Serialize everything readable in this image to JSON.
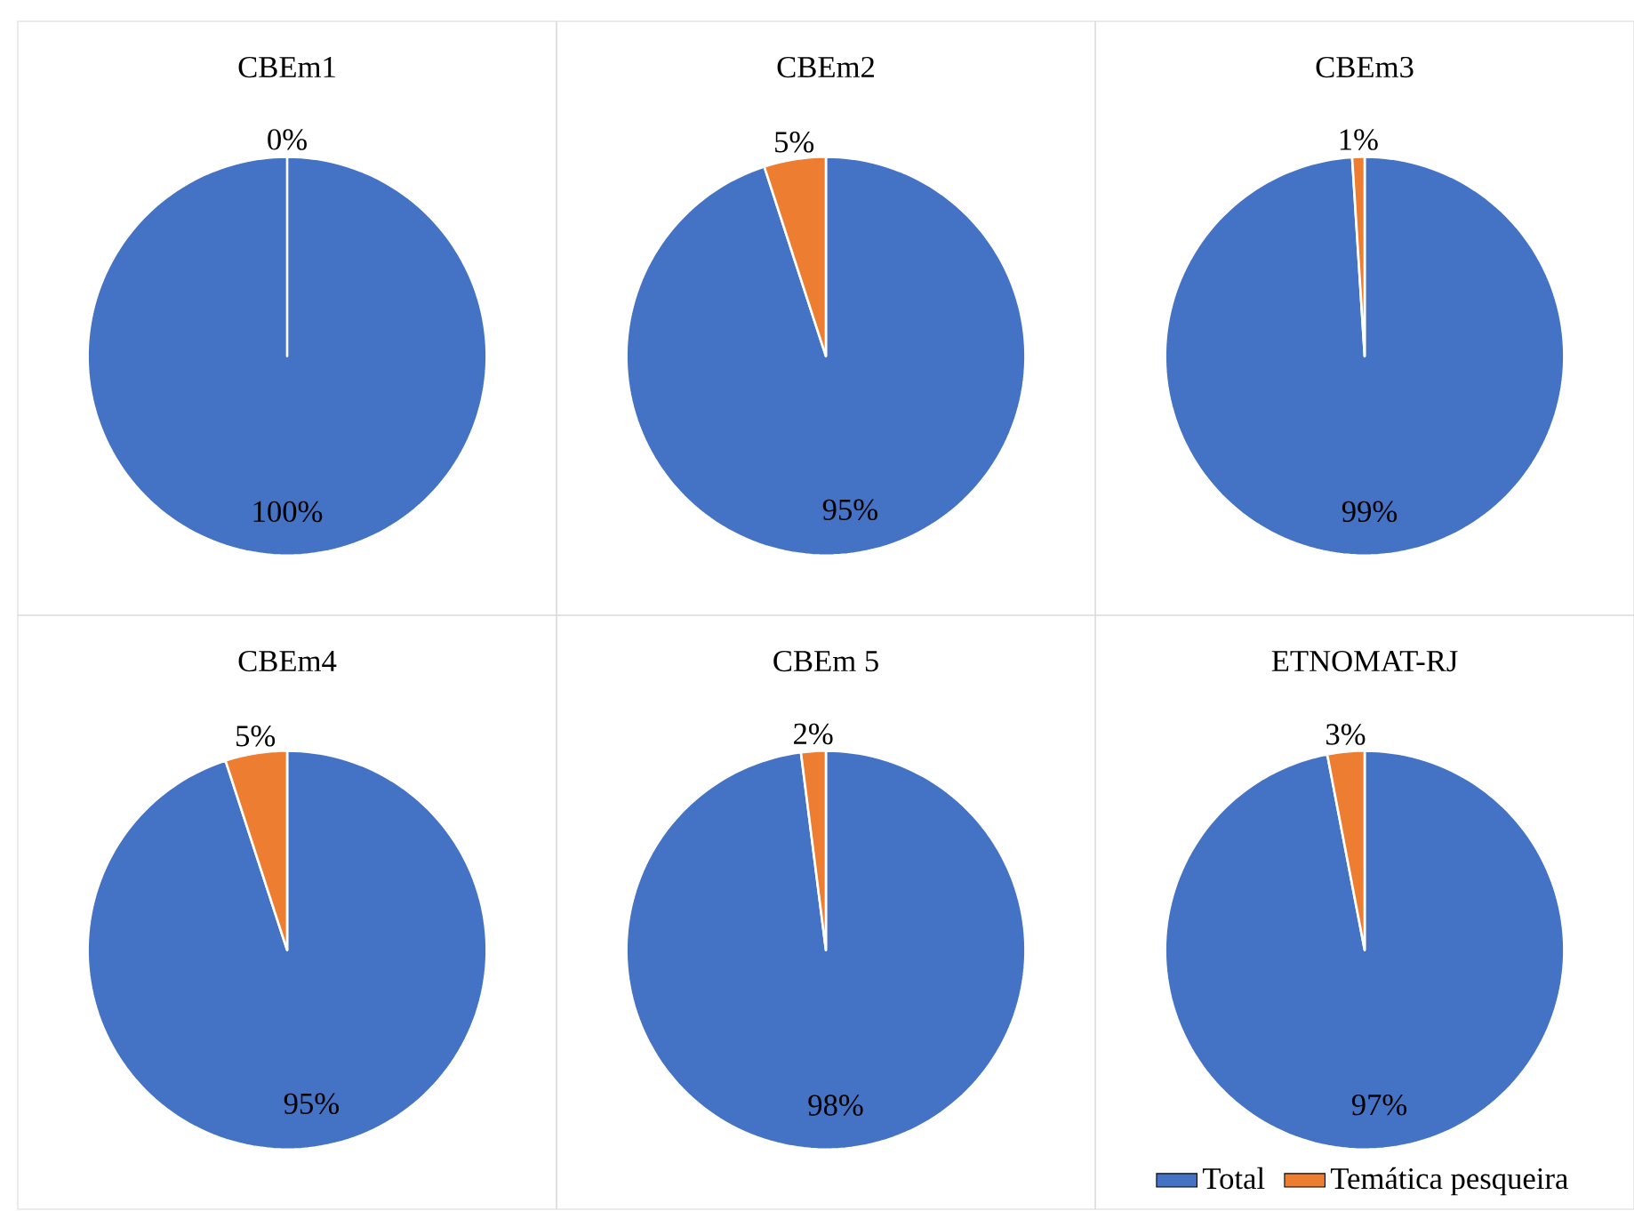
{
  "chart_data": [
    {
      "type": "pie",
      "title": "CBEm1",
      "categories": [
        null,
        null
      ],
      "values": [
        100,
        0
      ],
      "colors": [
        "#4472c4",
        "#ed7d31"
      ],
      "value_labels": [
        "100%",
        "0%"
      ],
      "legend": false
    },
    {
      "type": "pie",
      "title": "CBEm2",
      "categories": [
        null,
        null
      ],
      "values": [
        95,
        5
      ],
      "colors": [
        "#4472c4",
        "#ed7d31"
      ],
      "value_labels": [
        "95%",
        "5%"
      ],
      "legend": false
    },
    {
      "type": "pie",
      "title": "CBEm3",
      "categories": [
        null,
        null
      ],
      "values": [
        99,
        1
      ],
      "colors": [
        "#4472c4",
        "#ed7d31"
      ],
      "value_labels": [
        "99%",
        "1%"
      ],
      "legend": false
    },
    {
      "type": "pie",
      "title": "CBEm4",
      "categories": [
        null,
        null
      ],
      "values": [
        95,
        5
      ],
      "colors": [
        "#4472c4",
        "#ed7d31"
      ],
      "value_labels": [
        "95%",
        "5%"
      ],
      "legend": false
    },
    {
      "type": "pie",
      "title": "CBEm 5",
      "categories": [
        null,
        null
      ],
      "values": [
        98,
        2
      ],
      "colors": [
        "#4472c4",
        "#ed7d31"
      ],
      "value_labels": [
        "98%",
        "2%"
      ],
      "legend": false
    },
    {
      "type": "pie",
      "title": "ETNOMAT-RJ",
      "categories": [
        "Total",
        "Temática pesqueira"
      ],
      "values": [
        97,
        3
      ],
      "colors": [
        "#4472c4",
        "#ed7d31"
      ],
      "value_labels": [
        "97%",
        "3%"
      ],
      "legend": "bottom"
    }
  ]
}
